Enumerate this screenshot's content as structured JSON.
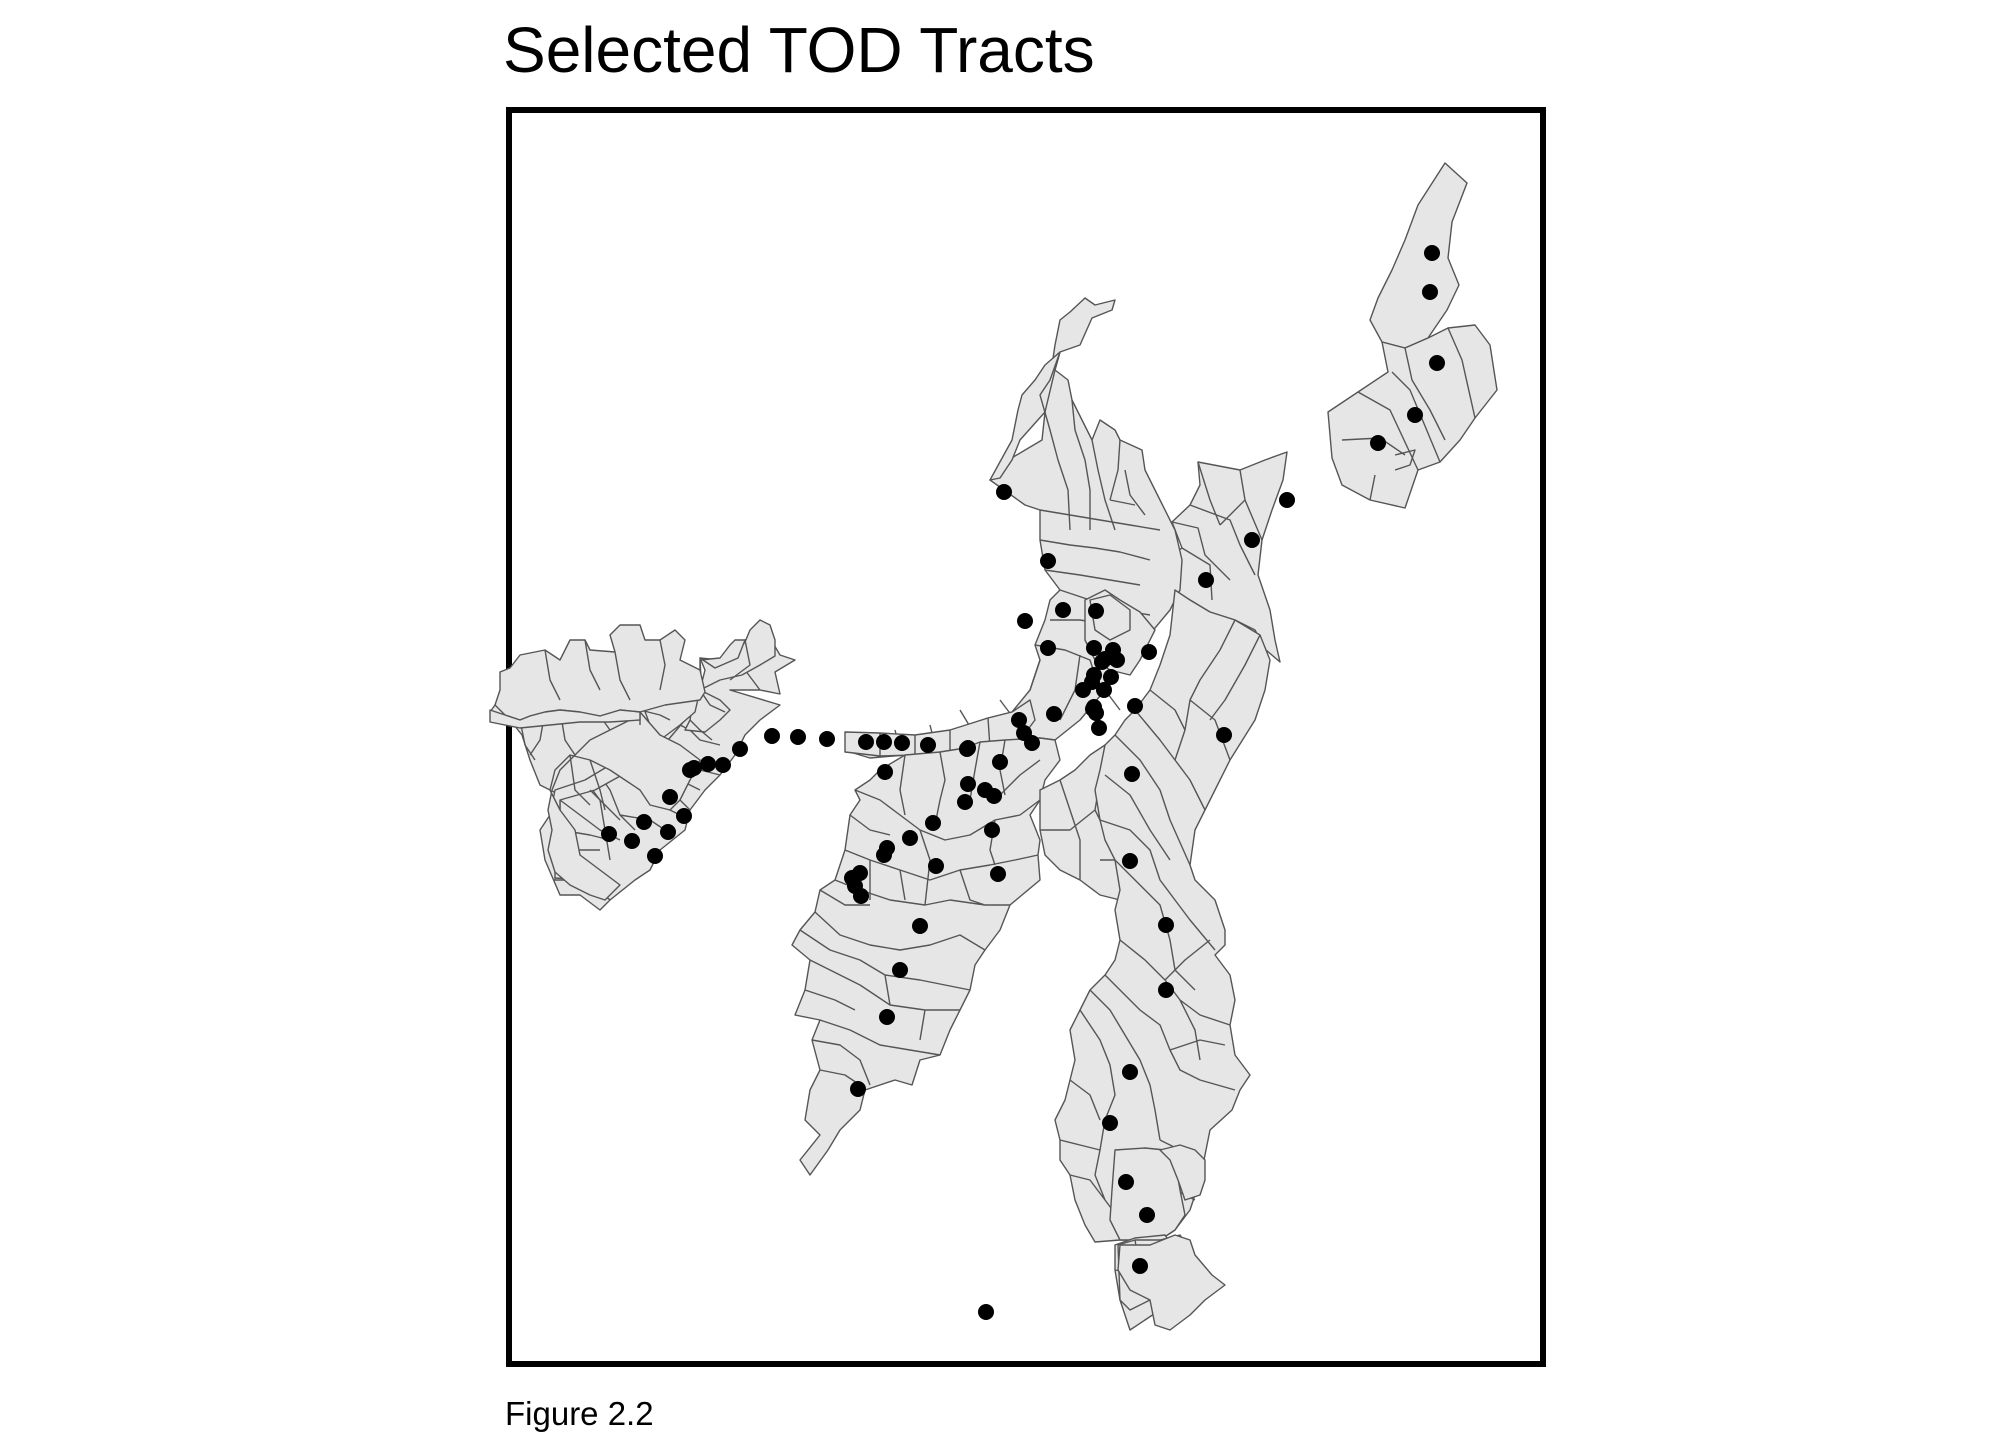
{
  "figure": {
    "title": "Selected TOD Tracts",
    "caption": "Figure 2.2"
  },
  "map": {
    "colors": {
      "tract_fill": "#e6e6e6",
      "tract_stroke": "#555555",
      "station_fill": "#000000",
      "frame_stroke": "#000000",
      "background": "#ffffff"
    },
    "layers": [
      "tod-tracts",
      "transit-stations"
    ]
  }
}
